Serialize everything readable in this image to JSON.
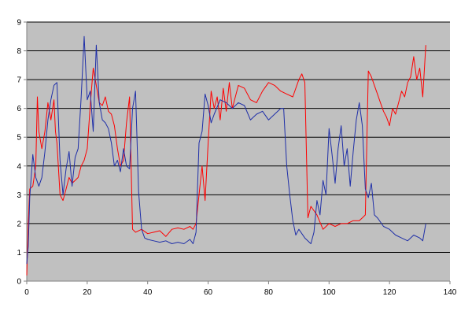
{
  "chart_data": {
    "type": "line",
    "title": "",
    "xlabel": "",
    "ylabel": "",
    "xlim": [
      0,
      140
    ],
    "ylim": [
      0,
      9
    ],
    "x_ticks": [
      0,
      20,
      40,
      60,
      80,
      100,
      120,
      140
    ],
    "y_ticks": [
      0,
      1,
      2,
      3,
      4,
      5,
      6,
      7,
      8,
      9
    ],
    "grid": "horizontal",
    "legend": "none",
    "colors": {
      "plot_background": "#c0c0c0",
      "grid": "#000000",
      "axis": "#808080"
    },
    "series": [
      {
        "color": "#ff0000",
        "points": [
          [
            0,
            0.2
          ],
          [
            0.5,
            2.0
          ],
          [
            1,
            3.2
          ],
          [
            2,
            3.3
          ],
          [
            3,
            4.0
          ],
          [
            3.5,
            6.4
          ],
          [
            4,
            5.2
          ],
          [
            5,
            4.6
          ],
          [
            6,
            5.2
          ],
          [
            7,
            6.2
          ],
          [
            8,
            5.6
          ],
          [
            9,
            6.3
          ],
          [
            9.5,
            5.2
          ],
          [
            10,
            4.8
          ],
          [
            11,
            3.0
          ],
          [
            12,
            2.8
          ],
          [
            13,
            3.2
          ],
          [
            14,
            3.6
          ],
          [
            15,
            3.4
          ],
          [
            16,
            3.5
          ],
          [
            17,
            3.6
          ],
          [
            18,
            4.0
          ],
          [
            19,
            4.2
          ],
          [
            20,
            4.6
          ],
          [
            21,
            6.1
          ],
          [
            22,
            7.4
          ],
          [
            23,
            6.8
          ],
          [
            24,
            6.2
          ],
          [
            25,
            6.1
          ],
          [
            26,
            6.4
          ],
          [
            27,
            5.9
          ],
          [
            28,
            5.8
          ],
          [
            29,
            5.4
          ],
          [
            30,
            4.6
          ],
          [
            31,
            4.0
          ],
          [
            32,
            4.2
          ],
          [
            33,
            5.5
          ],
          [
            34,
            6.4
          ],
          [
            35,
            1.8
          ],
          [
            36,
            1.7
          ],
          [
            38,
            1.8
          ],
          [
            40,
            1.65
          ],
          [
            42,
            1.7
          ],
          [
            44,
            1.75
          ],
          [
            46,
            1.55
          ],
          [
            48,
            1.8
          ],
          [
            50,
            1.85
          ],
          [
            52,
            1.8
          ],
          [
            54,
            1.9
          ],
          [
            55,
            1.8
          ],
          [
            56,
            2.0
          ],
          [
            57,
            3.0
          ],
          [
            58,
            4.0
          ],
          [
            59,
            2.8
          ],
          [
            60,
            4.8
          ],
          [
            61,
            6.6
          ],
          [
            62,
            6.0
          ],
          [
            63,
            6.4
          ],
          [
            64,
            5.6
          ],
          [
            65,
            6.7
          ],
          [
            66,
            5.9
          ],
          [
            67,
            6.9
          ],
          [
            68,
            6.0
          ],
          [
            70,
            6.8
          ],
          [
            72,
            6.7
          ],
          [
            74,
            6.3
          ],
          [
            76,
            6.2
          ],
          [
            78,
            6.6
          ],
          [
            80,
            6.9
          ],
          [
            82,
            6.8
          ],
          [
            84,
            6.6
          ],
          [
            86,
            6.5
          ],
          [
            88,
            6.4
          ],
          [
            90,
            7.0
          ],
          [
            91,
            7.2
          ],
          [
            92,
            6.9
          ],
          [
            93,
            2.2
          ],
          [
            94,
            2.6
          ],
          [
            96,
            2.3
          ],
          [
            98,
            1.8
          ],
          [
            100,
            2.0
          ],
          [
            102,
            1.9
          ],
          [
            104,
            2.0
          ],
          [
            106,
            2.0
          ],
          [
            108,
            2.1
          ],
          [
            110,
            2.1
          ],
          [
            111,
            2.2
          ],
          [
            112,
            2.3
          ],
          [
            113,
            7.3
          ],
          [
            114,
            7.1
          ],
          [
            115,
            6.8
          ],
          [
            116,
            6.5
          ],
          [
            117,
            6.2
          ],
          [
            118,
            5.9
          ],
          [
            119,
            5.7
          ],
          [
            120,
            5.4
          ],
          [
            121,
            6.0
          ],
          [
            122,
            5.8
          ],
          [
            123,
            6.2
          ],
          [
            124,
            6.6
          ],
          [
            125,
            6.4
          ],
          [
            126,
            6.9
          ],
          [
            127,
            7.1
          ],
          [
            128,
            7.8
          ],
          [
            129,
            7.0
          ],
          [
            130,
            7.4
          ],
          [
            131,
            6.4
          ],
          [
            132,
            8.2
          ]
        ]
      },
      {
        "color": "#1f2fa8",
        "points": [
          [
            0,
            0.6
          ],
          [
            0.5,
            1.2
          ],
          [
            1,
            2.9
          ],
          [
            2,
            4.4
          ],
          [
            3,
            3.6
          ],
          [
            4,
            3.3
          ],
          [
            5,
            3.6
          ],
          [
            6,
            4.5
          ],
          [
            7,
            5.6
          ],
          [
            8,
            6.3
          ],
          [
            9,
            6.8
          ],
          [
            10,
            6.9
          ],
          [
            11,
            4.2
          ],
          [
            12,
            3.0
          ],
          [
            13,
            3.9
          ],
          [
            14,
            4.5
          ],
          [
            15,
            3.3
          ],
          [
            16,
            4.3
          ],
          [
            17,
            4.6
          ],
          [
            18,
            6.4
          ],
          [
            19,
            8.5
          ],
          [
            20,
            6.3
          ],
          [
            21,
            6.6
          ],
          [
            22,
            5.2
          ],
          [
            23,
            8.2
          ],
          [
            24,
            6.2
          ],
          [
            25,
            5.6
          ],
          [
            26,
            5.5
          ],
          [
            27,
            5.3
          ],
          [
            28,
            4.8
          ],
          [
            29,
            4.0
          ],
          [
            30,
            4.2
          ],
          [
            31,
            3.8
          ],
          [
            32,
            4.6
          ],
          [
            33,
            4.0
          ],
          [
            34,
            3.9
          ],
          [
            35,
            6.0
          ],
          [
            36,
            6.6
          ],
          [
            37,
            3.1
          ],
          [
            38,
            1.8
          ],
          [
            39,
            1.5
          ],
          [
            40,
            1.45
          ],
          [
            42,
            1.4
          ],
          [
            44,
            1.35
          ],
          [
            46,
            1.4
          ],
          [
            48,
            1.3
          ],
          [
            50,
            1.35
          ],
          [
            52,
            1.3
          ],
          [
            54,
            1.45
          ],
          [
            55,
            1.3
          ],
          [
            56,
            1.7
          ],
          [
            57,
            4.8
          ],
          [
            58,
            5.2
          ],
          [
            59,
            6.5
          ],
          [
            60,
            6.1
          ],
          [
            61,
            5.5
          ],
          [
            62,
            5.8
          ],
          [
            64,
            6.3
          ],
          [
            66,
            6.2
          ],
          [
            68,
            6.0
          ],
          [
            70,
            6.2
          ],
          [
            72,
            6.1
          ],
          [
            74,
            5.6
          ],
          [
            76,
            5.8
          ],
          [
            78,
            5.9
          ],
          [
            80,
            5.6
          ],
          [
            82,
            5.8
          ],
          [
            84,
            6.0
          ],
          [
            85,
            6.0
          ],
          [
            86,
            4.0
          ],
          [
            87,
            3.0
          ],
          [
            88,
            2.1
          ],
          [
            89,
            1.6
          ],
          [
            90,
            1.8
          ],
          [
            92,
            1.5
          ],
          [
            94,
            1.3
          ],
          [
            95,
            1.7
          ],
          [
            96,
            2.8
          ],
          [
            97,
            2.3
          ],
          [
            98,
            3.5
          ],
          [
            99,
            3.0
          ],
          [
            100,
            5.3
          ],
          [
            101,
            4.4
          ],
          [
            102,
            3.4
          ],
          [
            103,
            4.6
          ],
          [
            104,
            5.4
          ],
          [
            105,
            4.0
          ],
          [
            106,
            4.6
          ],
          [
            107,
            3.3
          ],
          [
            108,
            4.5
          ],
          [
            109,
            5.6
          ],
          [
            110,
            6.2
          ],
          [
            111,
            5.4
          ],
          [
            112,
            3.2
          ],
          [
            113,
            2.9
          ],
          [
            114,
            3.4
          ],
          [
            115,
            2.3
          ],
          [
            116,
            2.2
          ],
          [
            118,
            1.9
          ],
          [
            120,
            1.8
          ],
          [
            122,
            1.6
          ],
          [
            124,
            1.5
          ],
          [
            126,
            1.4
          ],
          [
            128,
            1.6
          ],
          [
            130,
            1.5
          ],
          [
            131,
            1.4
          ],
          [
            132,
            2.0
          ]
        ]
      }
    ]
  }
}
